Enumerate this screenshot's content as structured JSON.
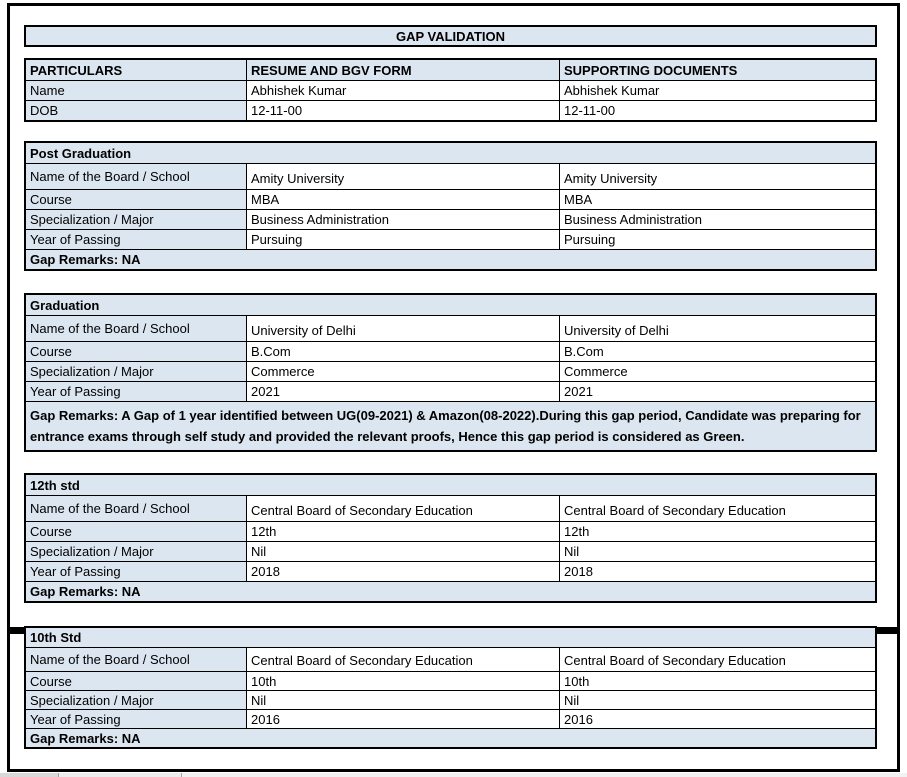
{
  "title": "GAP VALIDATION",
  "columns": [
    "PARTICULARS",
    "RESUME AND BGV FORM",
    "SUPPORTING DOCUMENTS"
  ],
  "particulars": {
    "rows": [
      {
        "label": "Name",
        "resume": "Abhishek Kumar",
        "supporting": "Abhishek Kumar"
      },
      {
        "label": "DOB",
        "resume": "12-11-00",
        "supporting": "12-11-00"
      }
    ]
  },
  "sections": [
    {
      "heading": "Post Graduation",
      "rows": [
        {
          "label": "Name of the Board / School",
          "resume": "Amity University",
          "supporting": "Amity University"
        },
        {
          "label": "Course",
          "resume": "MBA",
          "supporting": "MBA"
        },
        {
          "label": "Specialization / Major",
          "resume": "Business Administration",
          "supporting": "Business Administration"
        },
        {
          "label": "Year of Passing",
          "resume": "Pursuing",
          "supporting": "Pursuing"
        }
      ],
      "gap_remarks": "Gap Remarks: NA"
    },
    {
      "heading": "Graduation",
      "rows": [
        {
          "label": "Name of the Board / School",
          "resume": "University of Delhi",
          "supporting": "University of Delhi"
        },
        {
          "label": "Course",
          "resume": "B.Com",
          "supporting": "B.Com"
        },
        {
          "label": "Specialization / Major",
          "resume": "Commerce",
          "supporting": "Commerce"
        },
        {
          "label": "Year of Passing",
          "resume": "2021",
          "supporting": "2021"
        }
      ],
      "gap_remarks": "Gap Remarks: A Gap of 1 year identified between UG(09-2021) & Amazon(08-2022).During this gap period, Candidate was preparing for entrance exams through self study and provided the relevant proofs, Hence this gap period is considered as Green."
    },
    {
      "heading": "12th std",
      "rows": [
        {
          "label": "Name of the Board / School",
          "resume": "Central Board of Secondary Education",
          "supporting": "Central Board of Secondary Education"
        },
        {
          "label": "Course",
          "resume": "12th",
          "supporting": "12th"
        },
        {
          "label": "Specialization / Major",
          "resume": "Nil",
          "supporting": "Nil"
        },
        {
          "label": "Year of Passing",
          "resume": "2018",
          "supporting": "2018"
        }
      ],
      "gap_remarks": "Gap Remarks: NA"
    },
    {
      "heading": "10th Std",
      "rows": [
        {
          "label": "Name of the Board / School",
          "resume": "Central Board of Secondary Education",
          "supporting": "Central Board of Secondary Education"
        },
        {
          "label": "Course",
          "resume": "10th",
          "supporting": "10th"
        },
        {
          "label": "Specialization / Major",
          "resume": "Nil",
          "supporting": "Nil"
        },
        {
          "label": "Year of Passing",
          "resume": "2016",
          "supporting": "2016"
        }
      ],
      "gap_remarks": "Gap Remarks: NA"
    }
  ],
  "colors": {
    "header_fill": "#dce6f1",
    "border": "#000000",
    "page_bg": "#ffffff",
    "bottom_strip": "#ededed"
  }
}
